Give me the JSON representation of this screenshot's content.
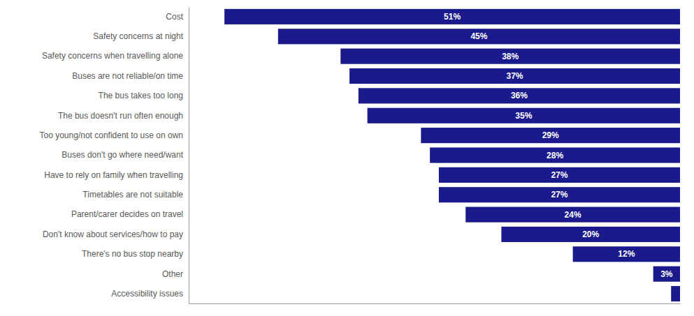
{
  "chart_data": {
    "type": "bar",
    "orientation": "horizontal",
    "categories": [
      "Cost",
      "Safety concerns at night",
      "Safety concerns when travelling alone",
      "Buses are not reliable/on time",
      "The bus takes too long",
      "The bus doesn't run often enough",
      "Too young/not confident to use on own",
      "Buses don't go where need/want",
      "Have to rely on family when travelling",
      "Timetables are not suitable",
      "Parent/carer decides on travel",
      "Don't know about services/how to pay",
      "There's no bus stop nearby",
      "Other",
      "Accessibility issues"
    ],
    "values": [
      51,
      45,
      38,
      37,
      36,
      35,
      29,
      28,
      27,
      27,
      24,
      20,
      12,
      3,
      1
    ],
    "value_labels": [
      "51%",
      "45%",
      "38%",
      "37%",
      "36%",
      "35%",
      "29%",
      "28%",
      "27%",
      "27%",
      "24%",
      "20%",
      "12%",
      "3%",
      null
    ],
    "color": "#1a1a8c",
    "xlim": [
      0,
      55
    ],
    "data_labels": true,
    "tick_labels": "y"
  }
}
